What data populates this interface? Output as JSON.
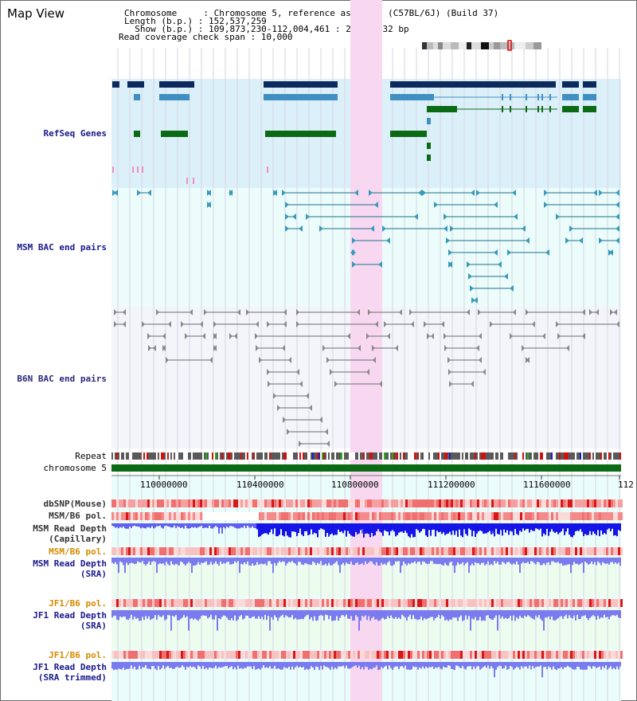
{
  "header": {
    "view_title": "Map View",
    "info_lines": [
      "Chromosome     : Chromosome 5, reference assembly (C57BL/6J) (Build 37)",
      "Length (b.p.) : 152,537,259",
      "  Show (b.p.) : 109,873,230-112,004,461 : 2,131,232 bp",
      "Read coverage check span : 10,000"
    ]
  },
  "tracks": {
    "refseq": "RefSeq Genes",
    "msm_bac": "MSM BAC end pairs",
    "b6n_bac": "B6N BAC end pairs",
    "repeat": "Repeat",
    "chromosome": "chromosome 5",
    "dbsnp": "dbSNP(Mouse)",
    "msm_b6_pol": "MSM/B6 pol.",
    "msm_read_depth_cap_1": "MSM Read Depth",
    "msm_read_depth_cap_2": "(Capillary)",
    "msm_b6_pol_2": "MSM/B6 pol.",
    "msm_read_depth_sra_1": "MSM Read Depth",
    "msm_read_depth_sra_2": "(SRA)",
    "jf1_b6_pol": "JF1/B6 pol.",
    "jf1_read_depth_1": "JF1 Read Depth",
    "jf1_read_depth_2": "(SRA)",
    "jf1_b6_pol_2": "JF1/B6 pol.",
    "jf1_read_depth_tr_1": "JF1 Read Depth",
    "jf1_read_depth_tr_2": "(SRA trimmed)"
  },
  "axis": {
    "ticks": [
      "110000000",
      "110400000",
      "110800000",
      "111200000",
      "111600000",
      "112"
    ]
  },
  "colors": {
    "refseq_bg": "#dcf0fa",
    "bac_bg": "#ebfcfb",
    "b6n_bg": "#f3f5fb",
    "highlight": "#f8d8f0",
    "gene_dark": "#0d2a5c",
    "gene_mid": "#3f8fc0",
    "gene_green": "#0b6b14",
    "bac_line": "#1a6f8a",
    "b6n_line": "#6b6b6b",
    "chrom_bar": "#0b6b14",
    "depth_blue": "#1515e8",
    "depth_light": "#7b7bf0",
    "pol_red": "#f06060"
  }
}
